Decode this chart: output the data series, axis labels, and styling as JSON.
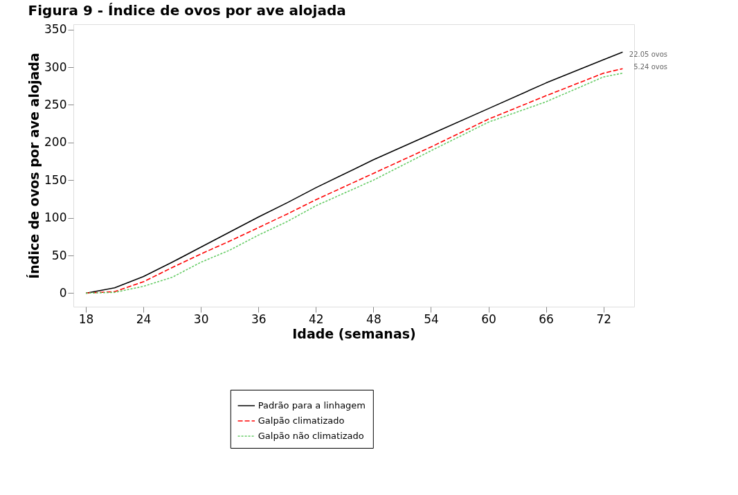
{
  "chart_data": {
    "type": "line",
    "title": "Figura 9 - Índice de ovos por ave alojada",
    "xlabel": "Idade (semanas)",
    "ylabel": "Índice de ovos por ave alojada",
    "x": [
      18,
      21,
      24,
      27,
      30,
      33,
      36,
      39,
      42,
      48,
      54,
      60,
      66,
      72,
      74
    ],
    "series": [
      {
        "name": "Padrão para a linhagem",
        "color": "#000000",
        "line_style": "solid",
        "values": [
          0,
          7,
          22,
          41,
          61,
          81,
          101,
          120,
          140,
          177,
          211,
          245,
          279,
          310,
          320
        ]
      },
      {
        "name": "Galpão climatizado",
        "color": "#ff0000",
        "line_style": "dashed",
        "values": [
          0,
          2,
          15,
          34,
          52,
          69,
          87,
          105,
          124,
          159,
          194,
          231,
          262,
          292,
          298
        ]
      },
      {
        "name": "Galpão não climatizado",
        "color": "#66cc66",
        "line_style": "dotted",
        "values": [
          0,
          1,
          9,
          21,
          41,
          57,
          77,
          95,
          116,
          150,
          189,
          227,
          254,
          287,
          292
        ]
      }
    ],
    "xlim": [
      16.7,
      75.2
    ],
    "ylim": [
      -18,
      357
    ],
    "xticks": [
      18,
      24,
      30,
      36,
      42,
      48,
      54,
      60,
      66,
      72
    ],
    "yticks": [
      0,
      50,
      100,
      150,
      200,
      250,
      300,
      350
    ],
    "annotations": [
      "22.05 ovos",
      "5.24 ovos"
    ],
    "grid": false,
    "legend": "bottom",
    "marker": "none"
  }
}
